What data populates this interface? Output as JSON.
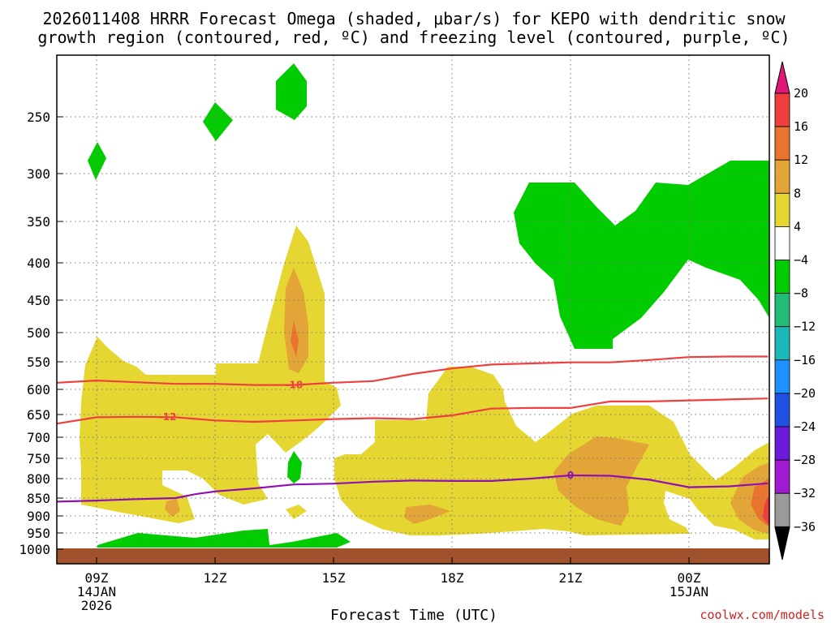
{
  "chart_data": {
    "type": "heatmap",
    "title_lines": [
      "2026011408 HRRR Forecast Omega (shaded, μbar/s) for KEPO with dendritic snow",
      "growth region (contoured, red, ºC) and freezing level (contoured, purple, ºC)"
    ],
    "xlabel": "Forecast Time (UTC)",
    "credit": "coolwx.com/models",
    "x_ticks": [
      {
        "hour": 9,
        "lines": [
          "09Z",
          "14JAN",
          "2026"
        ]
      },
      {
        "hour": 12,
        "lines": [
          "12Z"
        ]
      },
      {
        "hour": 15,
        "lines": [
          "15Z"
        ]
      },
      {
        "hour": 18,
        "lines": [
          "18Z"
        ]
      },
      {
        "hour": 21,
        "lines": [
          "21Z"
        ]
      },
      {
        "hour": 24,
        "lines": [
          "00Z",
          "15JAN"
        ]
      }
    ],
    "x_range_hours": [
      8,
      26
    ],
    "y_ticks": [
      250,
      300,
      350,
      400,
      450,
      500,
      550,
      600,
      650,
      700,
      750,
      800,
      850,
      900,
      950,
      1000
    ],
    "y_range_hPa": [
      200,
      1000
    ],
    "surface_color": "#a0522d",
    "colorbar": {
      "labels": [
        "20",
        "16",
        "12",
        "8",
        "4",
        "−4",
        "−8",
        "−12",
        "−16",
        "−20",
        "−24",
        "−28",
        "−32",
        "−36"
      ],
      "colors": [
        "#ee3d3d",
        "#e8742e",
        "#e3a537",
        "#e6d631",
        "#ffffff",
        "#00cc00",
        "#22bb77",
        "#1cb8b8",
        "#1e90ff",
        "#2050e0",
        "#6a1ad8",
        "#a01ad0",
        "#9a9a9a"
      ],
      "top_arrow_color": "#e0187a",
      "bottom_arrow_color": "#000000"
    },
    "omega_shading": {
      "sinking_4_to_8": "#e6d631",
      "sinking_8_to_12": "#e3a537",
      "sinking_12_to_16": "#e8742e",
      "sinking_16_to_20": "#ee3d3d",
      "rising_minus4_to_minus8": "#00cc00"
    },
    "contours": [
      {
        "name": "dendritic-top",
        "label": "-18",
        "color": "#ee4040",
        "points": [
          [
            8,
            588
          ],
          [
            9,
            584
          ],
          [
            10,
            587
          ],
          [
            11,
            590
          ],
          [
            12,
            590
          ],
          [
            13,
            592
          ],
          [
            14,
            592
          ],
          [
            15,
            588
          ],
          [
            16,
            585
          ],
          [
            17,
            572
          ],
          [
            18,
            562
          ],
          [
            19,
            555
          ],
          [
            20,
            553
          ],
          [
            21,
            551
          ],
          [
            22,
            551
          ],
          [
            23,
            547
          ],
          [
            24,
            542
          ],
          [
            25,
            541
          ],
          [
            26,
            541
          ]
        ]
      },
      {
        "name": "dendritic-bottom",
        "label": "-12",
        "color": "#ee4040",
        "points": [
          [
            8,
            670
          ],
          [
            9,
            656
          ],
          [
            10,
            655
          ],
          [
            11,
            656
          ],
          [
            12,
            663
          ],
          [
            13,
            666
          ],
          [
            14,
            663
          ],
          [
            15,
            660
          ],
          [
            16,
            658
          ],
          [
            17,
            660
          ],
          [
            18,
            652
          ],
          [
            19,
            638
          ],
          [
            20,
            637
          ],
          [
            21,
            637
          ],
          [
            22,
            624
          ],
          [
            23,
            624
          ],
          [
            24,
            622
          ],
          [
            25,
            620
          ],
          [
            26,
            618
          ]
        ]
      },
      {
        "name": "freezing-level",
        "label": "0",
        "color": "#9010b0",
        "points": [
          [
            8,
            860
          ],
          [
            9,
            857
          ],
          [
            10,
            853
          ],
          [
            11,
            850
          ],
          [
            11.5,
            840
          ],
          [
            12,
            833
          ],
          [
            13,
            825
          ],
          [
            14,
            815
          ],
          [
            15,
            813
          ],
          [
            16,
            808
          ],
          [
            17,
            805
          ],
          [
            18,
            806
          ],
          [
            19,
            806
          ],
          [
            20,
            800
          ],
          [
            21,
            792
          ],
          [
            22,
            793
          ],
          [
            23,
            803
          ],
          [
            24,
            822
          ],
          [
            25,
            820
          ],
          [
            26,
            812
          ]
        ]
      }
    ]
  }
}
